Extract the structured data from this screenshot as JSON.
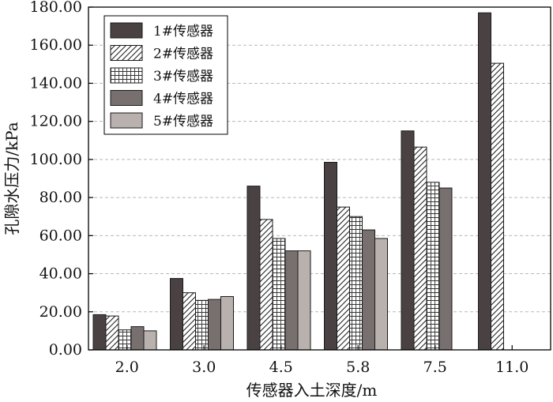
{
  "chart_data": {
    "type": "bar",
    "title": "",
    "xlabel": "传感器入土深度/m",
    "ylabel": "孔隙水压力/kPa",
    "ylim": [
      0,
      180
    ],
    "yticks": [
      "0.00",
      "20.00",
      "40.00",
      "60.00",
      "80.00",
      "100.00",
      "120.00",
      "140.00",
      "160.00",
      "180.00"
    ],
    "grid": true,
    "legend_position": "top-left",
    "categories": [
      "2.0",
      "3.0",
      "4.5",
      "5.8",
      "7.5",
      "11.0"
    ],
    "series": [
      {
        "name": "1#传感器",
        "pattern": "solid-dark",
        "color": "#4a4242",
        "values": [
          18.5,
          37.5,
          86.0,
          98.5,
          115.0,
          177.0
        ]
      },
      {
        "name": "2#传感器",
        "pattern": "diagonal-hatch",
        "color": "#ffffff",
        "values": [
          17.8,
          30.0,
          68.5,
          75.0,
          106.5,
          150.5
        ]
      },
      {
        "name": "3#传感器",
        "pattern": "grid-hatch",
        "color": "#ffffff",
        "values": [
          10.5,
          26.0,
          58.5,
          70.0,
          88.0,
          null
        ]
      },
      {
        "name": "4#传感器",
        "pattern": "solid-mid",
        "color": "#77706e",
        "values": [
          12.2,
          26.5,
          52.0,
          63.0,
          85.0,
          null
        ]
      },
      {
        "name": "5#传感器",
        "pattern": "solid-light",
        "color": "#b9b1ae",
        "values": [
          10.0,
          28.0,
          52.0,
          58.5,
          null,
          null
        ]
      }
    ]
  }
}
